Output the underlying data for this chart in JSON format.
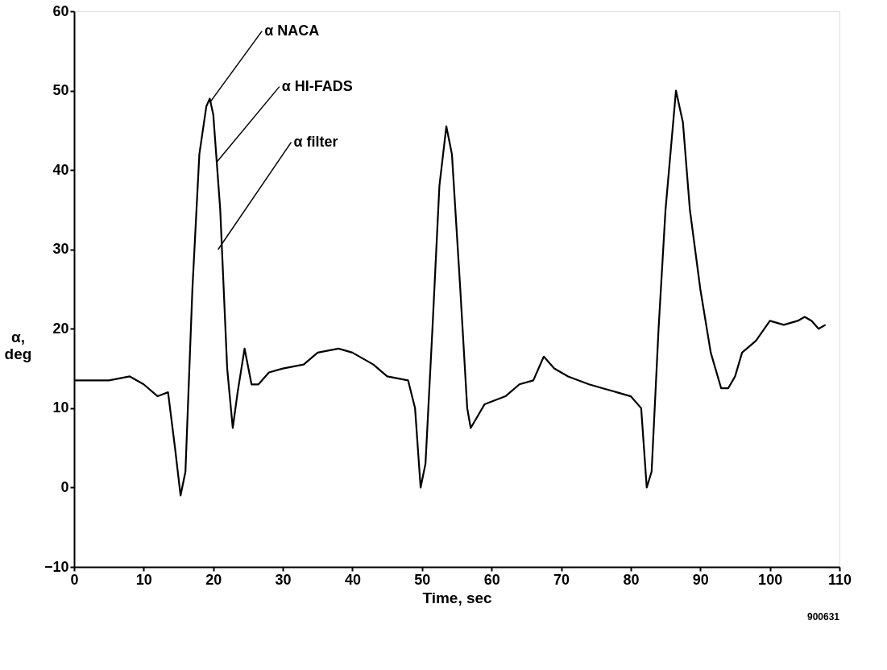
{
  "chart_data": {
    "type": "line",
    "xlabel": "Time, sec",
    "ylabel": "α, deg",
    "xlim": [
      0,
      110
    ],
    "xticks": [
      0,
      10,
      20,
      30,
      40,
      50,
      60,
      70,
      80,
      90,
      100,
      110
    ],
    "ylim": [
      -10,
      60
    ],
    "yticks": [
      -10,
      0,
      10,
      20,
      30,
      40,
      50,
      60
    ],
    "marker": "none",
    "line_style": "solid",
    "x": [
      0,
      5,
      8,
      10,
      12,
      13.5,
      14.5,
      15.3,
      16,
      17,
      18,
      19,
      19.5,
      20,
      21,
      22,
      22.8,
      23.5,
      24.5,
      25.5,
      26.5,
      28,
      30,
      33,
      35,
      38,
      40,
      43,
      45,
      48,
      49,
      49.8,
      50.5,
      51.5,
      52.5,
      53.5,
      54.3,
      55.5,
      56.5,
      57,
      58,
      59,
      62,
      64,
      66,
      67.5,
      69,
      71,
      74,
      76,
      78,
      80,
      81.5,
      82.3,
      83,
      84,
      85,
      86.5,
      87.5,
      88.5,
      90,
      91.5,
      93,
      94,
      95,
      96,
      98,
      100,
      102,
      104,
      105,
      106,
      107,
      108
    ],
    "series": [
      {
        "color": "#000000",
        "values": [
          13.5,
          13.5,
          14,
          13,
          11.5,
          12,
          5,
          -1,
          2,
          25,
          42,
          48,
          49,
          47,
          35,
          15,
          7.5,
          12,
          17.5,
          13,
          13,
          14.5,
          15,
          15.5,
          17,
          17.5,
          17,
          15.5,
          14,
          13.5,
          10,
          0,
          3,
          20,
          38,
          45.5,
          42,
          25,
          10,
          7.5,
          9,
          10.5,
          11.5,
          13,
          13.5,
          16.5,
          15,
          14,
          13,
          12.5,
          12,
          11.5,
          10,
          0,
          2,
          20,
          35,
          50,
          46,
          35,
          25,
          17,
          12.5,
          12.5,
          14,
          17,
          18.5,
          21,
          20.5,
          21,
          21.5,
          21,
          20,
          20.5
        ]
      }
    ],
    "annotations": [
      {
        "text": "α NACA",
        "x": 19.5,
        "y": 48.5
      },
      {
        "text": "α HI-FADS",
        "x": 20.5,
        "y": 41
      },
      {
        "text": "α filter",
        "x": 20.7,
        "y": 30
      },
      "900631"
    ]
  }
}
